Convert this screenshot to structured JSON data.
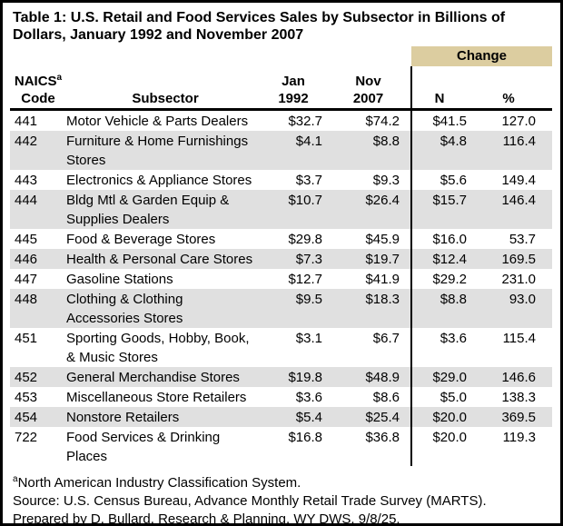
{
  "chart_data": {
    "type": "table",
    "title": "Table 1: U.S. Retail and Food Services Sales by Subsector in Billions of Dollars, January 1992 and November 2007",
    "header": {
      "change_group": "Change",
      "naics_line1": "NAICS",
      "naics_sup": "a",
      "naics_line2": "Code",
      "subsector": "Subsector",
      "jan_line1": "Jan",
      "jan_line2": "1992",
      "nov_line1": "Nov",
      "nov_line2": "2007",
      "n": "N",
      "pct": "%"
    },
    "columns": [
      "NAICS Code",
      "Subsector",
      "Jan 1992",
      "Nov 2007",
      "Change N",
      "Change %"
    ],
    "rows": [
      {
        "code": "441",
        "subsector": "Motor Vehicle & Parts Dealers",
        "jan_1992": "$32.7",
        "nov_2007": "$74.2",
        "change_n": "$41.5",
        "change_pct": "127.0"
      },
      {
        "code": "442",
        "subsector": "Furniture & Home Furnishings Stores",
        "jan_1992": "$4.1",
        "nov_2007": "$8.8",
        "change_n": "$4.8",
        "change_pct": "116.4"
      },
      {
        "code": "443",
        "subsector": "Electronics & Appliance Stores",
        "jan_1992": "$3.7",
        "nov_2007": "$9.3",
        "change_n": "$5.6",
        "change_pct": "149.4"
      },
      {
        "code": "444",
        "subsector": "Bldg Mtl & Garden Equip & Supplies Dealers",
        "jan_1992": "$10.7",
        "nov_2007": "$26.4",
        "change_n": "$15.7",
        "change_pct": "146.4"
      },
      {
        "code": "445",
        "subsector": "Food & Beverage Stores",
        "jan_1992": "$29.8",
        "nov_2007": "$45.9",
        "change_n": "$16.0",
        "change_pct": "53.7"
      },
      {
        "code": "446",
        "subsector": "Health & Personal Care Stores",
        "jan_1992": "$7.3",
        "nov_2007": "$19.7",
        "change_n": "$12.4",
        "change_pct": "169.5"
      },
      {
        "code": "447",
        "subsector": "Gasoline Stations",
        "jan_1992": "$12.7",
        "nov_2007": "$41.9",
        "change_n": "$29.2",
        "change_pct": "231.0"
      },
      {
        "code": "448",
        "subsector": "Clothing & Clothing Accessories Stores",
        "jan_1992": "$9.5",
        "nov_2007": "$18.3",
        "change_n": "$8.8",
        "change_pct": "93.0"
      },
      {
        "code": "451",
        "subsector": "Sporting Goods, Hobby, Book, & Music Stores",
        "jan_1992": "$3.1",
        "nov_2007": "$6.7",
        "change_n": "$3.6",
        "change_pct": "115.4"
      },
      {
        "code": "452",
        "subsector": "General Merchandise Stores",
        "jan_1992": "$19.8",
        "nov_2007": "$48.9",
        "change_n": "$29.0",
        "change_pct": "146.6"
      },
      {
        "code": "453",
        "subsector": "Miscellaneous Store Retailers",
        "jan_1992": "$3.6",
        "nov_2007": "$8.6",
        "change_n": "$5.0",
        "change_pct": "138.3"
      },
      {
        "code": "454",
        "subsector": "Nonstore Retailers",
        "jan_1992": "$5.4",
        "nov_2007": "$25.4",
        "change_n": "$20.0",
        "change_pct": "369.5"
      },
      {
        "code": "722",
        "subsector": "Food Services & Drinking Places",
        "jan_1992": "$16.8",
        "nov_2007": "$36.8",
        "change_n": "$20.0",
        "change_pct": "119.3"
      }
    ],
    "footnotes": {
      "marker": "a",
      "line1": "North American Industry Classification System.",
      "line2": "Source: U.S. Census Bureau, Advance Monthly Retail Trade Survey (MARTS).",
      "line3": "Prepared by D. Bullard, Research & Planning, WY DWS, 9/8/25."
    }
  },
  "colors": {
    "change_header_bg": "#DCCDA0",
    "row_stripe": "#E0E0E0",
    "border": "#000000",
    "text": "#000000",
    "background": "#FFFFFF"
  }
}
